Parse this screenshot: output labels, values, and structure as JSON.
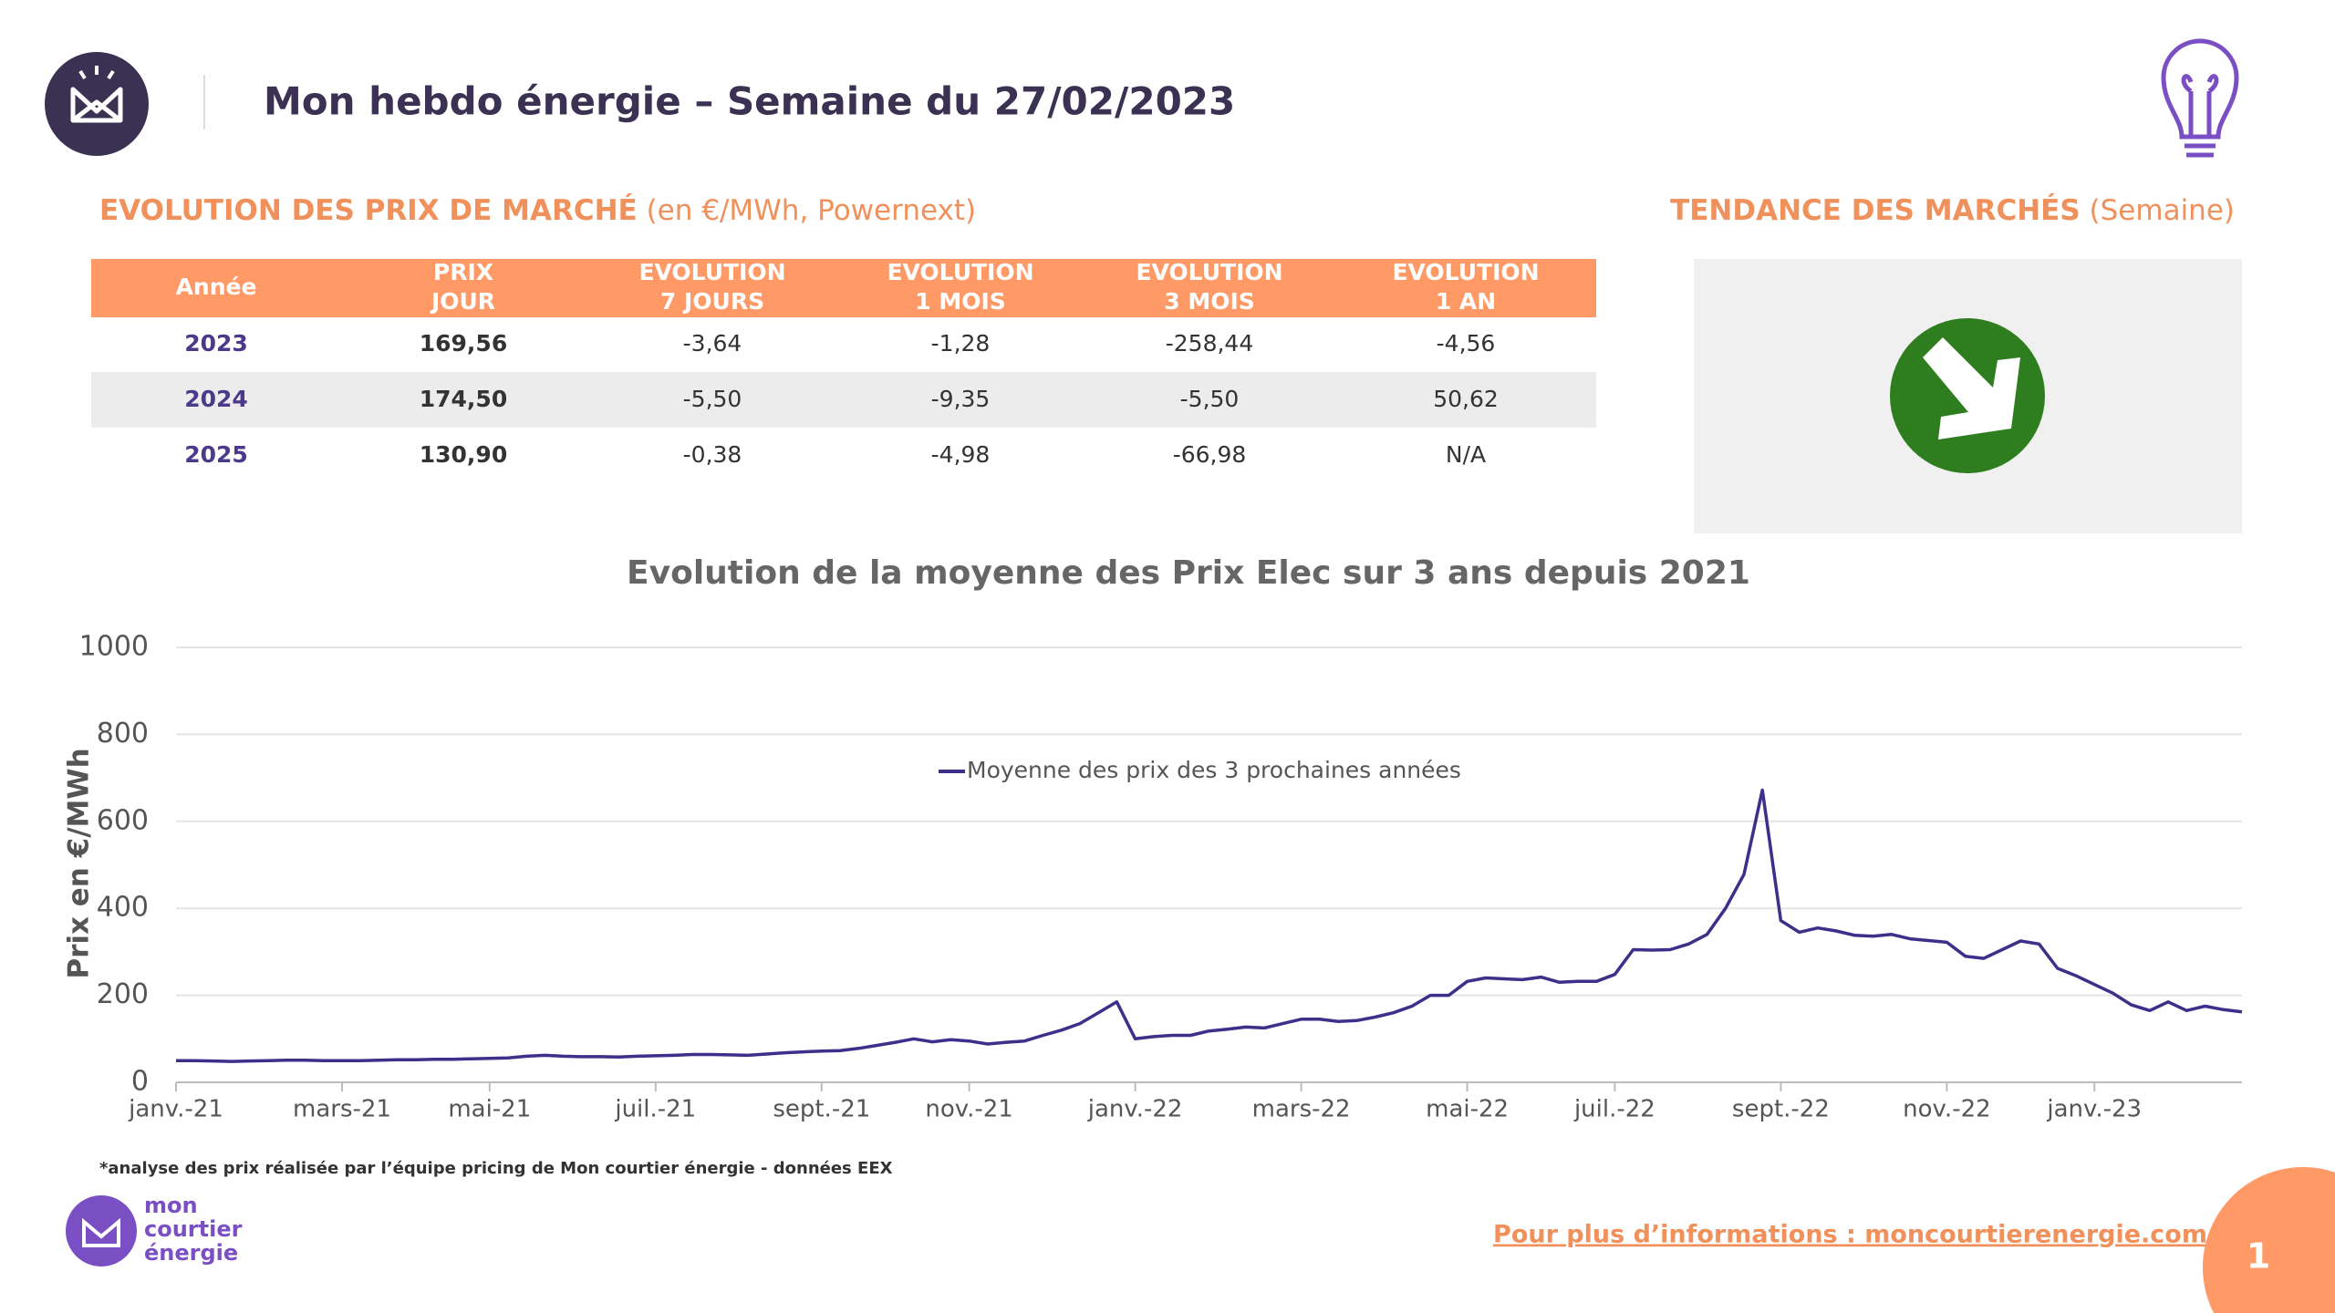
{
  "header": {
    "title": "Mon hebdo énergie – Semaine du 27/02/2023"
  },
  "market_section": {
    "title": "EVOLUTION DES PRIX DE MARCHÉ",
    "subtitle": "(en €/MWh, Powernext)"
  },
  "table": {
    "header": [
      [
        "Année"
      ],
      [
        "PRIX",
        "JOUR"
      ],
      [
        "EVOLUTION",
        "7 JOURS"
      ],
      [
        "EVOLUTION",
        "1 MOIS"
      ],
      [
        "EVOLUTION",
        "3 MOIS"
      ],
      [
        "EVOLUTION",
        "1 AN"
      ]
    ],
    "rows": [
      [
        "2023",
        "169,56",
        "-3,64",
        "-1,28",
        "-258,44",
        "-4,56"
      ],
      [
        "2024",
        "174,50",
        "-5,50",
        "-9,35",
        "-5,50",
        "50,62"
      ],
      [
        "2025",
        "130,90",
        "-0,38",
        "-4,98",
        "-66,98",
        "N/A"
      ]
    ]
  },
  "trend_section": {
    "title": "TENDANCE DES MARCHÉS",
    "subtitle": "(Semaine)"
  },
  "chart_data": {
    "type": "line",
    "title": "Evolution de la moyenne des Prix Elec sur 3 ans depuis 2021",
    "y_label": "Prix en €/MWh",
    "categories": [
      "janv.-21",
      null,
      null,
      null,
      null,
      null,
      null,
      null,
      null,
      "mars-21",
      null,
      null,
      null,
      null,
      null,
      null,
      null,
      "mai-21",
      null,
      null,
      null,
      null,
      null,
      null,
      null,
      null,
      "juil.-21",
      null,
      null,
      null,
      null,
      null,
      null,
      null,
      null,
      "sept.-21",
      null,
      null,
      null,
      null,
      null,
      null,
      null,
      "nov.-21",
      null,
      null,
      null,
      null,
      null,
      null,
      null,
      null,
      "janv.-22",
      null,
      null,
      null,
      null,
      null,
      null,
      null,
      null,
      "mars-22",
      null,
      null,
      null,
      null,
      null,
      null,
      null,
      null,
      "mai-22",
      null,
      null,
      null,
      null,
      null,
      null,
      null,
      "juil.-22",
      null,
      null,
      null,
      null,
      null,
      null,
      null,
      null,
      "sept.-22",
      null,
      null,
      null,
      null,
      null,
      null,
      null,
      null,
      "nov.-22",
      null,
      null,
      null,
      null,
      null,
      null,
      null,
      "janv.-23",
      null,
      null,
      null,
      null,
      null,
      null,
      null,
      null
    ],
    "series": [
      {
        "name": "Moyenne des prix des 3 prochaines années",
        "color": "#3d2f8a",
        "values": [
          50,
          50,
          49,
          48,
          49,
          50,
          51,
          51,
          50,
          50,
          50,
          51,
          52,
          52,
          53,
          53,
          54,
          55,
          56,
          60,
          62,
          60,
          59,
          59,
          58,
          60,
          61,
          62,
          64,
          64,
          63,
          62,
          65,
          68,
          70,
          72,
          73,
          78,
          85,
          92,
          100,
          93,
          98,
          95,
          88,
          92,
          95,
          108,
          120,
          135,
          160,
          185,
          100,
          105,
          108,
          108,
          118,
          122,
          127,
          125,
          135,
          145,
          145,
          140,
          142,
          150,
          160,
          175,
          200,
          200,
          232,
          240,
          238,
          236,
          242,
          230,
          232,
          232,
          248,
          305,
          304,
          305,
          318,
          340,
          400,
          478,
          672,
          372,
          345,
          355,
          348,
          338,
          336,
          340,
          330,
          326,
          322,
          290,
          285,
          305,
          325,
          318,
          262,
          245,
          225,
          205,
          178,
          165,
          185,
          165,
          175,
          167,
          162
        ]
      }
    ],
    "ylim": [
      0,
      1000
    ],
    "yticks": [
      0,
      200,
      400,
      600,
      800,
      1000
    ],
    "grid": true,
    "legend": "top"
  },
  "footnote": "*analyse des prix réalisée par l’équipe pricing de Mon courtier énergie -  données EEX",
  "footer": {
    "logo_lines": [
      "mon",
      "courtier",
      "énergie"
    ],
    "link": "Pour plus d’informations : moncourtierenergie.com",
    "page_number": "1"
  }
}
